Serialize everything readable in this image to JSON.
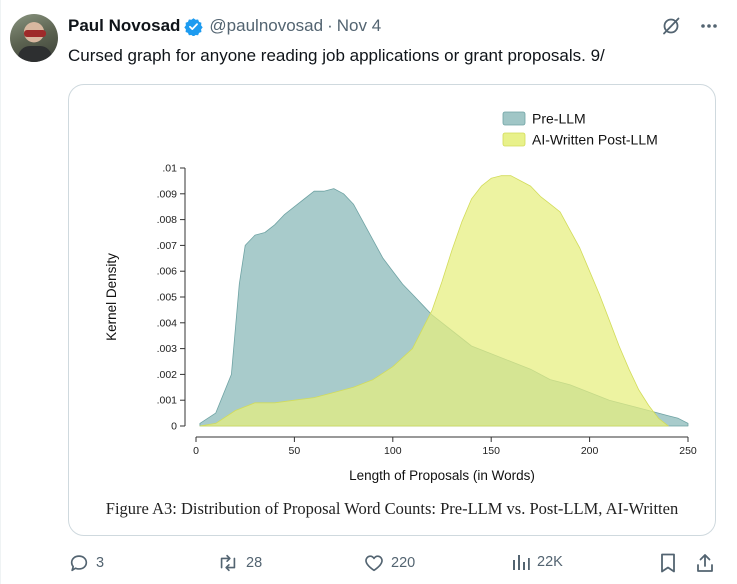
{
  "tweet": {
    "author_name": "Paul Novosad",
    "handle": "@paulnovosad",
    "separator": "·",
    "date": "Nov 4",
    "text": "Cursed graph for anyone reading job applications or grant proposals. 9/",
    "icons": [
      "verified-badge-icon",
      "grok-icon",
      "more-icon"
    ]
  },
  "actions": {
    "replies": "3",
    "reposts": "28",
    "likes": "220",
    "views": "22K"
  },
  "colors": {
    "pre_llm": "#8fbcbc",
    "post_llm": "#e6ef7d",
    "verified": "#1d9bf0"
  },
  "figure": {
    "caption": "Figure A3: Distribution of Proposal Word Counts: Pre-LLM vs. Post-LLM, AI-Written"
  },
  "chart_data": {
    "type": "area",
    "title": "",
    "xlabel": "Length of Proposals (in Words)",
    "ylabel": "Kernel Density",
    "xlim": [
      0,
      250
    ],
    "ylim": [
      0,
      0.01
    ],
    "x_ticks": [
      0,
      50,
      100,
      150,
      200,
      250
    ],
    "x_tick_labels": [
      "0",
      "50",
      "100",
      "150",
      "200",
      "250"
    ],
    "y_ticks": [
      0,
      0.001,
      0.002,
      0.003,
      0.004,
      0.005,
      0.006,
      0.007,
      0.008,
      0.009,
      0.01
    ],
    "y_tick_labels": [
      "0",
      ".001",
      ".002",
      ".003",
      ".004",
      ".005",
      ".006",
      ".007",
      ".008",
      ".009",
      ".01"
    ],
    "legend_position": "top-right",
    "series": [
      {
        "name": "Pre-LLM",
        "x": [
          2,
          10,
          18,
          22,
          25,
          30,
          35,
          40,
          45,
          50,
          55,
          60,
          65,
          70,
          75,
          80,
          85,
          90,
          95,
          100,
          105,
          110,
          115,
          120,
          130,
          140,
          150,
          160,
          170,
          180,
          190,
          200,
          210,
          220,
          230,
          240,
          245,
          250
        ],
        "y": [
          0.0001,
          0.0005,
          0.002,
          0.0055,
          0.007,
          0.0074,
          0.0075,
          0.0078,
          0.0082,
          0.0085,
          0.0088,
          0.0091,
          0.0091,
          0.0092,
          0.009,
          0.0086,
          0.0079,
          0.0072,
          0.0065,
          0.006,
          0.0055,
          0.0051,
          0.0047,
          0.0043,
          0.0037,
          0.0031,
          0.0028,
          0.0025,
          0.0022,
          0.0018,
          0.0016,
          0.0013,
          0.001,
          0.0008,
          0.0006,
          0.0004,
          0.0003,
          0.0001
        ]
      },
      {
        "name": "AI-Written Post-LLM",
        "x": [
          2,
          10,
          20,
          30,
          40,
          50,
          60,
          70,
          80,
          90,
          100,
          110,
          120,
          125,
          130,
          135,
          140,
          145,
          150,
          155,
          160,
          165,
          170,
          175,
          180,
          185,
          190,
          195,
          200,
          205,
          210,
          215,
          220,
          225,
          230,
          235,
          240
        ],
        "y": [
          0.0,
          0.0001,
          0.0006,
          0.0009,
          0.0009,
          0.001,
          0.0011,
          0.0013,
          0.0015,
          0.0018,
          0.0023,
          0.003,
          0.0045,
          0.0056,
          0.0068,
          0.0079,
          0.0088,
          0.0093,
          0.0096,
          0.0097,
          0.0097,
          0.0095,
          0.0093,
          0.0089,
          0.0086,
          0.0083,
          0.0076,
          0.0069,
          0.006,
          0.0051,
          0.0041,
          0.0031,
          0.0022,
          0.0014,
          0.0008,
          0.0003,
          0.0
        ]
      }
    ]
  }
}
